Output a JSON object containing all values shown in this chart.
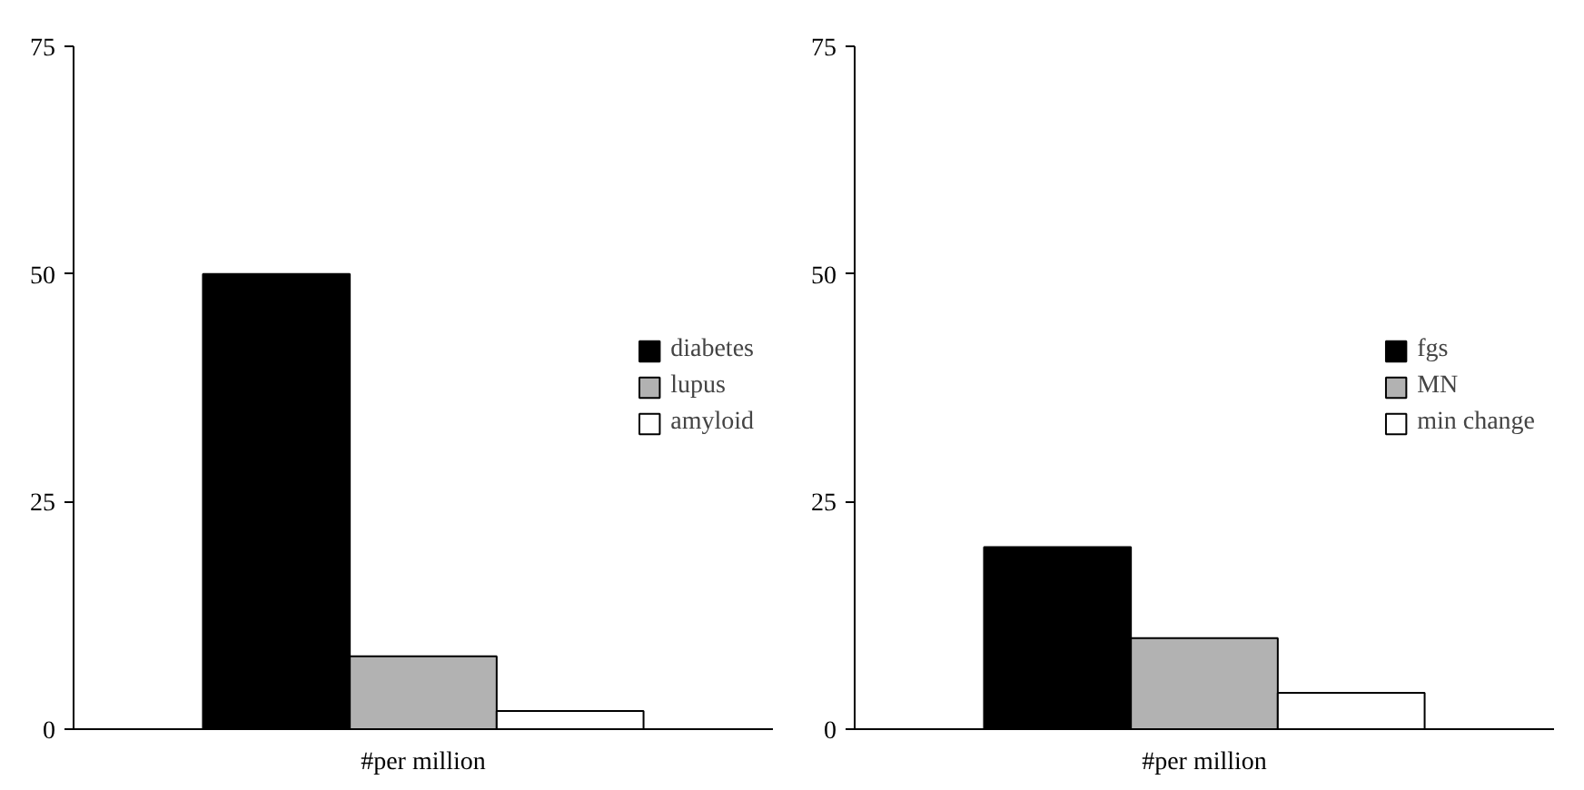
{
  "chart_data": [
    {
      "type": "bar",
      "categories": [
        "#per million"
      ],
      "ylim": [
        0,
        75
      ],
      "yticks": [
        0,
        25,
        50,
        75
      ],
      "grid": false,
      "legend": "right",
      "series": [
        {
          "name": "diabetes",
          "color": "#000000",
          "values": [
            50
          ]
        },
        {
          "name": "lupus",
          "color": "#b2b2b2",
          "values": [
            8
          ]
        },
        {
          "name": "amyloid",
          "color": "#ffffff",
          "values": [
            2
          ]
        }
      ]
    },
    {
      "type": "bar",
      "categories": [
        "#per million"
      ],
      "ylim": [
        0,
        75
      ],
      "yticks": [
        0,
        25,
        50,
        75
      ],
      "grid": false,
      "legend": "right",
      "series": [
        {
          "name": "fgs",
          "color": "#000000",
          "values": [
            20
          ]
        },
        {
          "name": "MN",
          "color": "#b2b2b2",
          "values": [
            10
          ]
        },
        {
          "name": "min change",
          "color": "#ffffff",
          "values": [
            4
          ]
        }
      ]
    }
  ]
}
